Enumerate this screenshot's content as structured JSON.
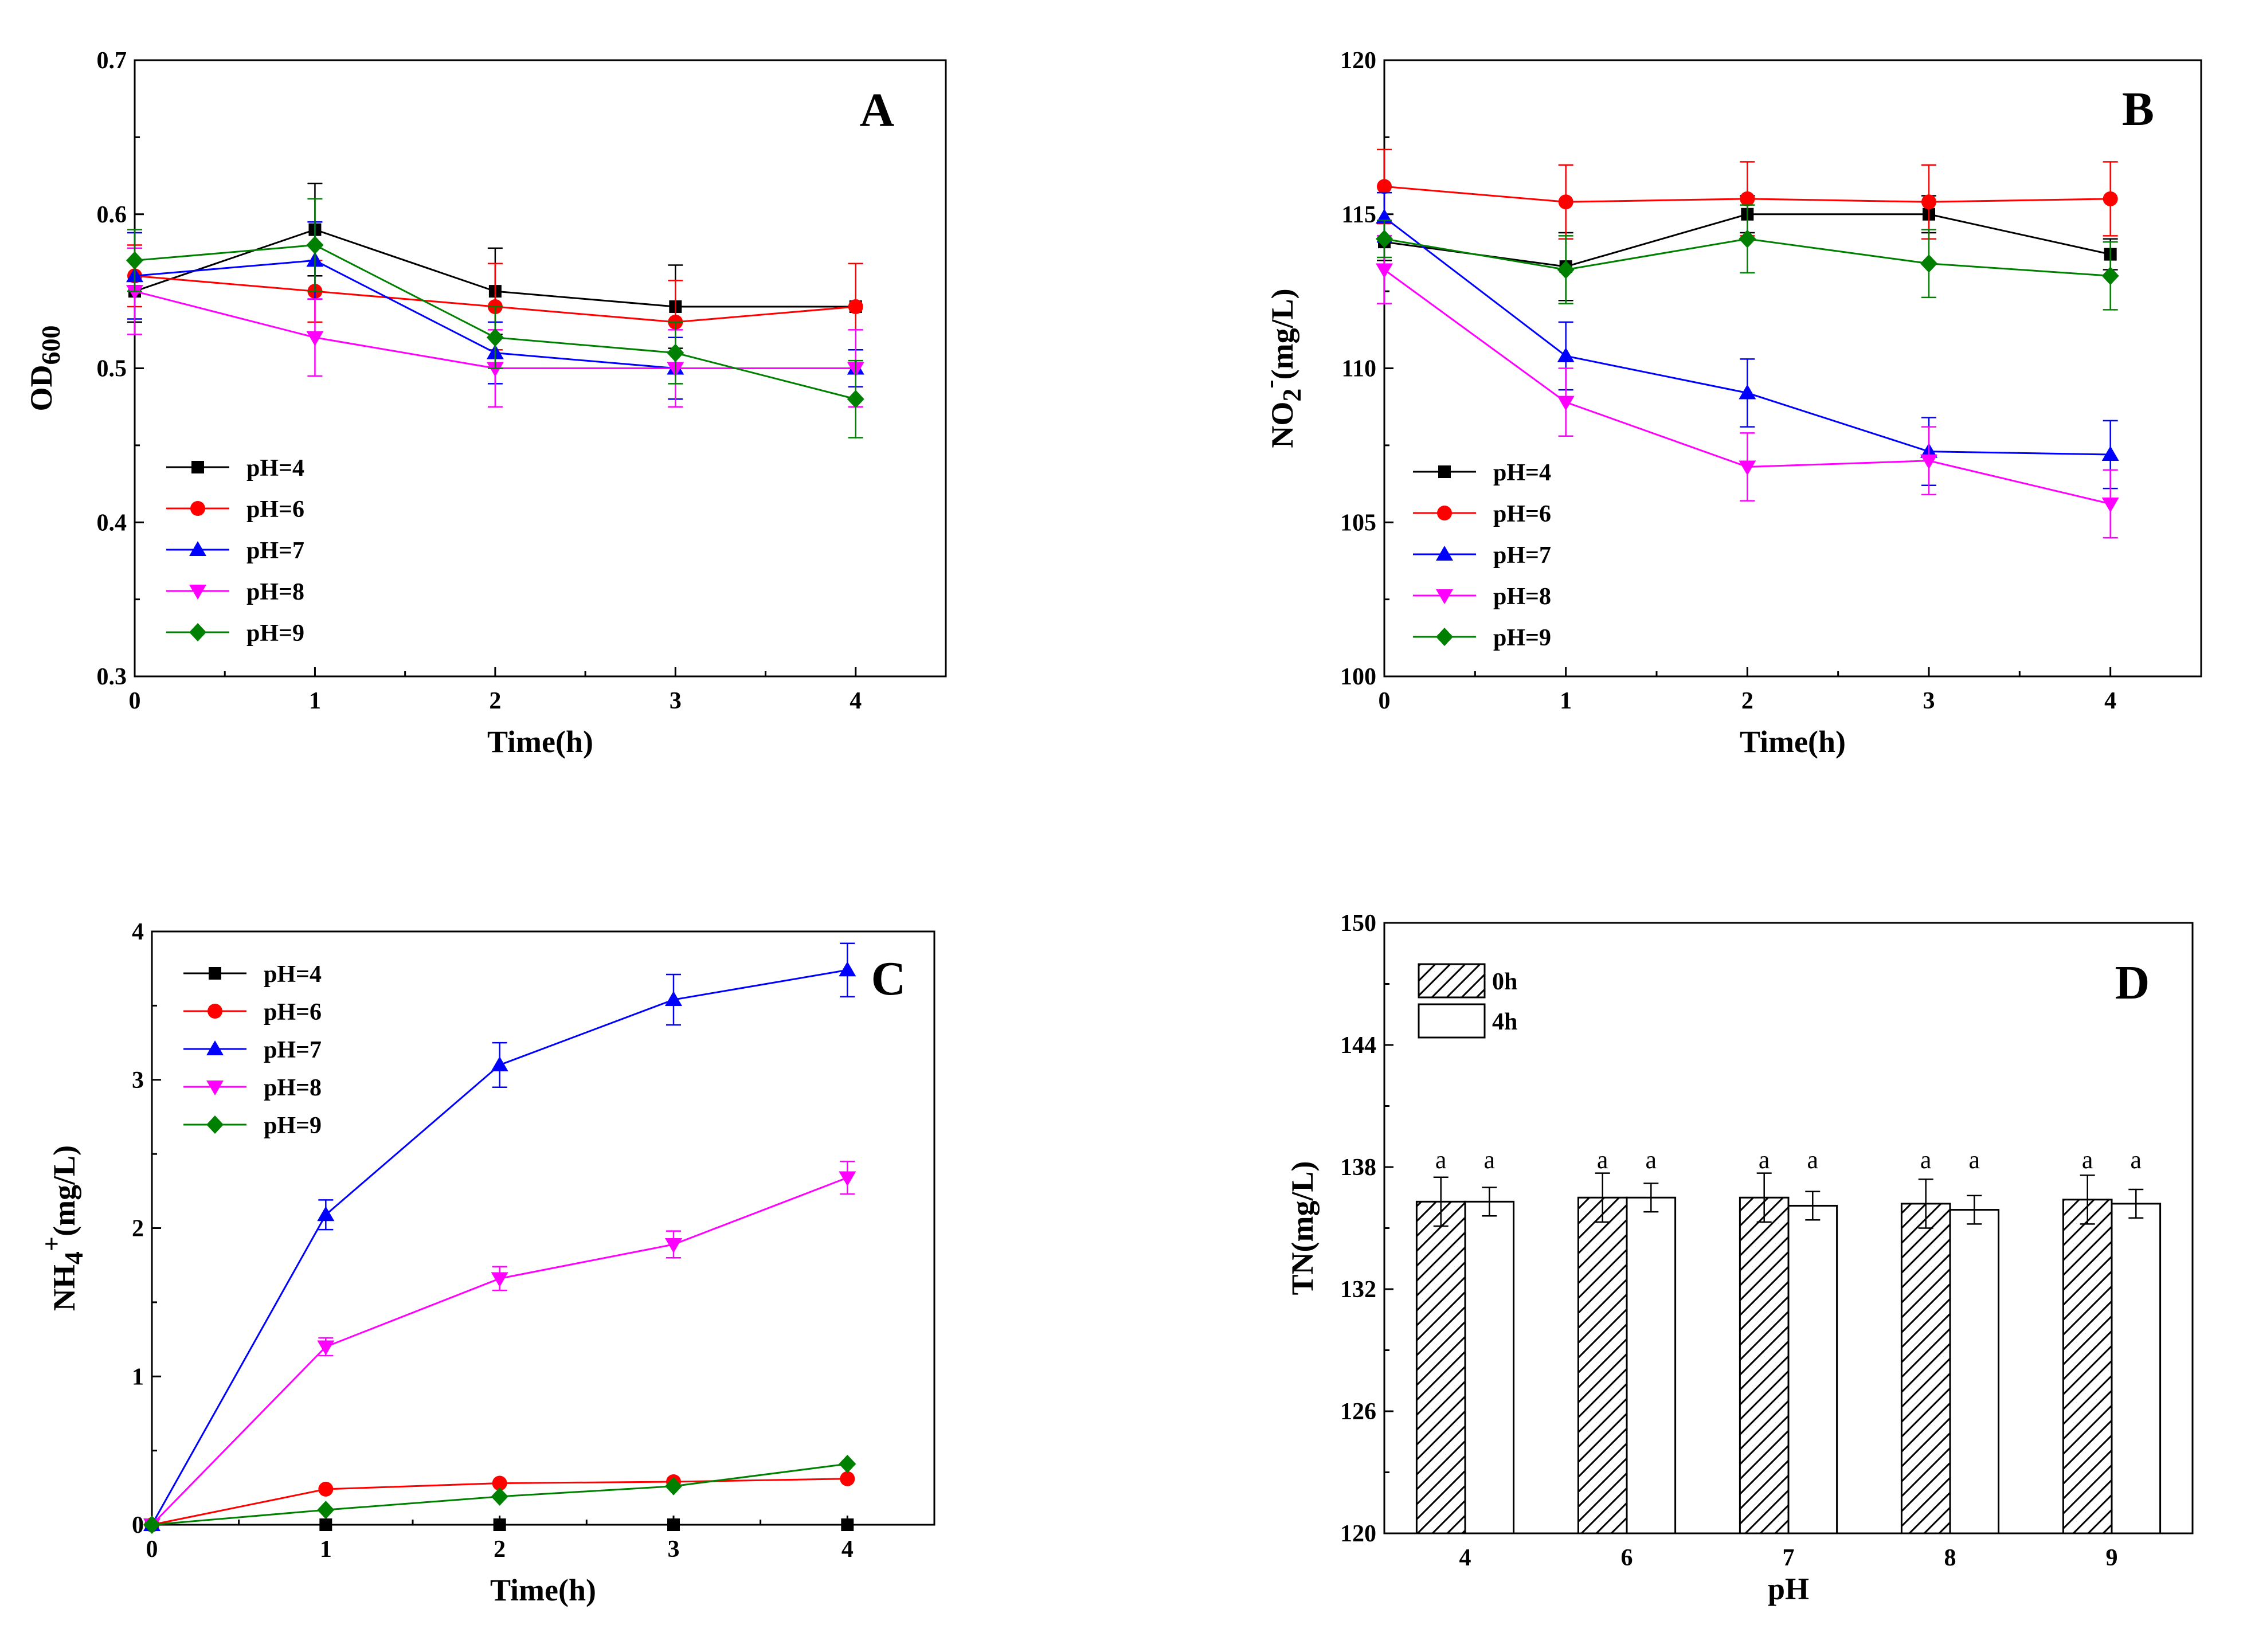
{
  "chart_data": [
    {
      "panel": "A",
      "type": "line",
      "xlabel": "Time(h)",
      "ylabel": "OD",
      "ylabel_sub": "600",
      "xlim": [
        0,
        4.5
      ],
      "ylim": [
        0.3,
        0.7
      ],
      "xticks": [
        0,
        1,
        2,
        3,
        4
      ],
      "yticks": [
        0.3,
        0.4,
        0.5,
        0.6,
        0.7
      ],
      "x": [
        0,
        1,
        2,
        3,
        4
      ],
      "series": [
        {
          "name": "pH=4",
          "color": "#000000",
          "marker": "square",
          "values": [
            0.55,
            0.59,
            0.55,
            0.54,
            0.54
          ],
          "errors": [
            0.02,
            0.03,
            0.028,
            0.027,
            0.028
          ]
        },
        {
          "name": "pH=6",
          "color": "#ff0000",
          "marker": "circle",
          "values": [
            0.56,
            0.55,
            0.54,
            0.53,
            0.54
          ],
          "errors": [
            0.02,
            0.02,
            0.028,
            0.027,
            0.028
          ]
        },
        {
          "name": "pH=7",
          "color": "#0000ff",
          "marker": "triangle-up",
          "values": [
            0.56,
            0.57,
            0.51,
            0.5,
            0.5
          ],
          "errors": [
            0.028,
            0.025,
            0.02,
            0.02,
            0.012
          ]
        },
        {
          "name": "pH=8",
          "color": "#ff00ff",
          "marker": "triangle-down",
          "values": [
            0.55,
            0.52,
            0.5,
            0.5,
            0.5
          ],
          "errors": [
            0.028,
            0.025,
            0.025,
            0.025,
            0.025
          ]
        },
        {
          "name": "pH=9",
          "color": "#008000",
          "marker": "diamond",
          "values": [
            0.57,
            0.58,
            0.52,
            0.51,
            0.48
          ],
          "errors": [
            0.02,
            0.03,
            0.02,
            0.02,
            0.025
          ]
        }
      ]
    },
    {
      "panel": "B",
      "type": "line",
      "xlabel": "Time(h)",
      "ylabel": "NO",
      "ylabel_sub": "2",
      "ylabel_sup": "-",
      "ylabel_rest": "(mg/L)",
      "xlim": [
        0,
        4.5
      ],
      "ylim": [
        100,
        120
      ],
      "xticks": [
        0,
        1,
        2,
        3,
        4
      ],
      "yticks": [
        100,
        105,
        110,
        115,
        120
      ],
      "x": [
        0,
        1,
        2,
        3,
        4
      ],
      "series": [
        {
          "name": "pH=4",
          "color": "#000000",
          "marker": "square",
          "values": [
            114.1,
            113.3,
            115.0,
            115.0,
            113.7
          ],
          "errors": [
            0.6,
            1.1,
            0.6,
            0.6,
            0.5
          ]
        },
        {
          "name": "pH=6",
          "color": "#ff0000",
          "marker": "circle",
          "values": [
            115.9,
            115.4,
            115.5,
            115.4,
            115.5
          ],
          "errors": [
            1.2,
            1.2,
            1.2,
            1.2,
            1.2
          ]
        },
        {
          "name": "pH=7",
          "color": "#0000ff",
          "marker": "triangle-up",
          "values": [
            114.9,
            110.4,
            109.2,
            107.3,
            107.2
          ],
          "errors": [
            0.8,
            1.1,
            1.1,
            1.1,
            1.1
          ]
        },
        {
          "name": "pH=8",
          "color": "#ff00ff",
          "marker": "triangle-down",
          "values": [
            113.2,
            108.9,
            106.8,
            107.0,
            105.6
          ],
          "errors": [
            1.1,
            1.1,
            1.1,
            1.1,
            1.1
          ]
        },
        {
          "name": "pH=9",
          "color": "#008000",
          "marker": "diamond",
          "values": [
            114.2,
            113.2,
            114.2,
            113.4,
            113.0
          ],
          "errors": [
            0.6,
            1.1,
            1.1,
            1.1,
            1.1
          ]
        }
      ]
    },
    {
      "panel": "C",
      "type": "line",
      "xlabel": "Time(h)",
      "ylabel": "NH",
      "ylabel_sub": "4",
      "ylabel_sup": "+",
      "ylabel_rest": "(mg/L)",
      "xlim": [
        0,
        4.5
      ],
      "ylim": [
        0,
        4
      ],
      "xticks": [
        0,
        1,
        2,
        3,
        4
      ],
      "yticks": [
        0,
        1,
        2,
        3,
        4
      ],
      "x": [
        0,
        1,
        2,
        3,
        4
      ],
      "series": [
        {
          "name": "pH=4",
          "color": "#000000",
          "marker": "square",
          "values": [
            0,
            0,
            0,
            0,
            0
          ],
          "errors": [
            0,
            0,
            0,
            0,
            0
          ]
        },
        {
          "name": "pH=6",
          "color": "#ff0000",
          "marker": "circle",
          "values": [
            0,
            0.24,
            0.28,
            0.29,
            0.31
          ],
          "errors": [
            0,
            0,
            0,
            0,
            0
          ]
        },
        {
          "name": "pH=7",
          "color": "#0000ff",
          "marker": "triangle-up",
          "values": [
            0,
            2.09,
            3.1,
            3.54,
            3.74
          ],
          "errors": [
            0,
            0.1,
            0.15,
            0.17,
            0.18
          ]
        },
        {
          "name": "pH=8",
          "color": "#ff00ff",
          "marker": "triangle-down",
          "values": [
            0,
            1.2,
            1.66,
            1.89,
            2.34
          ],
          "errors": [
            0,
            0.06,
            0.08,
            0.09,
            0.11
          ]
        },
        {
          "name": "pH=9",
          "color": "#008000",
          "marker": "diamond",
          "values": [
            0,
            0.1,
            0.19,
            0.26,
            0.41
          ],
          "errors": [
            0,
            0,
            0,
            0,
            0
          ]
        }
      ]
    },
    {
      "panel": "D",
      "type": "bar",
      "xlabel": "pH",
      "ylabel": "TN(mg/L)",
      "ylim": [
        120,
        150
      ],
      "yticks": [
        120,
        126,
        132,
        138,
        144,
        150
      ],
      "categories": [
        "4",
        "6",
        "7",
        "8",
        "9"
      ],
      "series": [
        {
          "name": "0h",
          "pattern": "hatched",
          "values": [
            136.3,
            136.5,
            136.5,
            136.2,
            136.4
          ],
          "errors": [
            1.2,
            1.2,
            1.2,
            1.2,
            1.2
          ],
          "labels": [
            "a",
            "a",
            "a",
            "a",
            "a"
          ]
        },
        {
          "name": "4h",
          "pattern": "open",
          "values": [
            136.3,
            136.5,
            136.1,
            135.9,
            136.2
          ],
          "errors": [
            0.7,
            0.7,
            0.7,
            0.7,
            0.7
          ],
          "labels": [
            "a",
            "a",
            "a",
            "a",
            "a"
          ]
        }
      ]
    }
  ]
}
